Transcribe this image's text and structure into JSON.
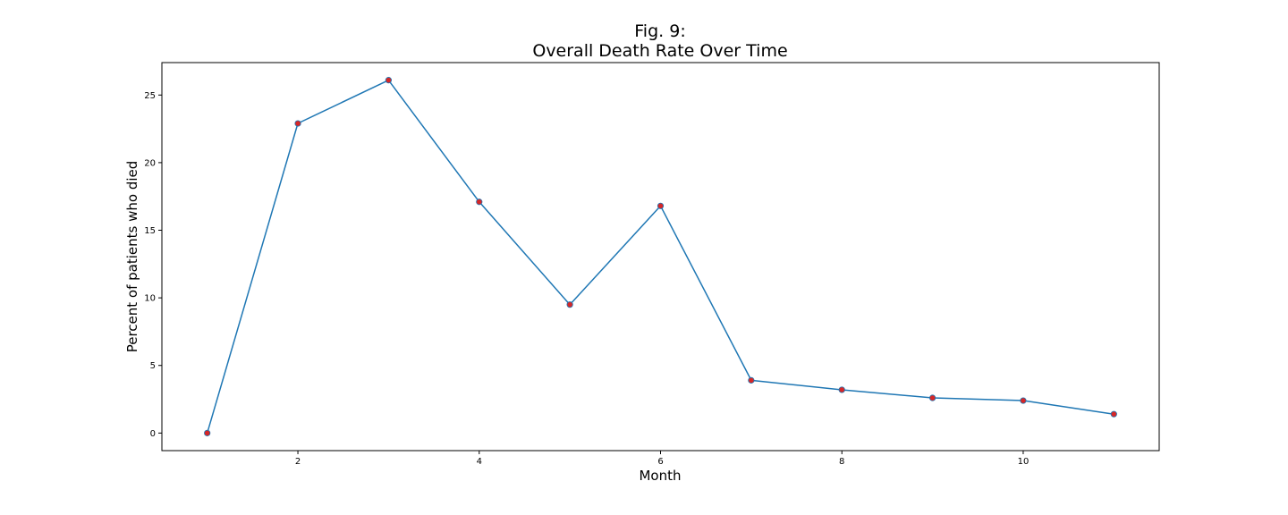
{
  "chart_data": {
    "type": "line",
    "title_line1": "Fig. 9:",
    "title_line2": "Overall Death Rate Over Time",
    "xlabel": "Month",
    "ylabel": "Percent of patients who died",
    "xlim": [
      0.5,
      11.5
    ],
    "ylim": [
      -1.3,
      27.4
    ],
    "xticks": [
      2,
      4,
      6,
      8,
      10
    ],
    "yticks": [
      0,
      5,
      10,
      15,
      20,
      25
    ],
    "grid": false,
    "line_color": "#1f77b4",
    "marker_color": "#d62728",
    "series": [
      {
        "x": [
          1,
          2,
          3,
          4,
          5,
          6,
          7,
          8,
          9,
          10,
          11
        ],
        "y": [
          0.0,
          22.9,
          26.1,
          17.1,
          9.5,
          16.8,
          3.9,
          3.2,
          2.6,
          2.4,
          1.4
        ]
      }
    ]
  }
}
